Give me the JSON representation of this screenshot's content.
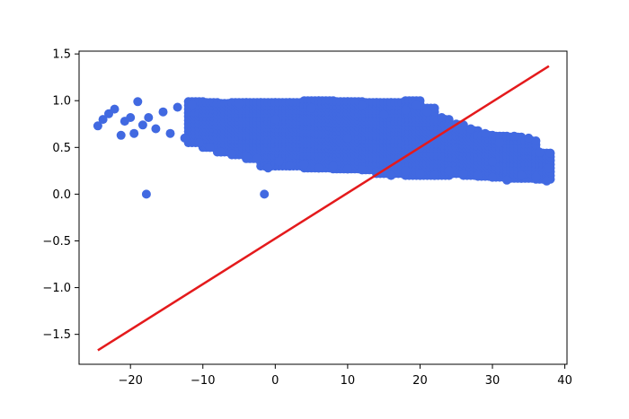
{
  "chart_data": {
    "type": "scatter",
    "title": "",
    "xlabel": "",
    "ylabel": "",
    "xlim": [
      -27.1,
      40.3
    ],
    "ylim": [
      -1.82,
      1.53
    ],
    "x_ticks": [
      -20,
      -10,
      0,
      10,
      20,
      30,
      40
    ],
    "y_ticks": [
      1.5,
      1.0,
      0.5,
      0.0,
      -0.5,
      -1.0,
      -1.5
    ],
    "x_tick_labels": [
      "−20",
      "−10",
      "0",
      "10",
      "20",
      "30",
      "40"
    ],
    "y_tick_labels": [
      "1.5",
      "1.0",
      "0.5",
      "0.0",
      "−0.5",
      "−1.0",
      "−1.5"
    ],
    "grid": false,
    "series": [
      {
        "kind": "scatter",
        "color": "#4169E1",
        "points": [
          [
            -24.5,
            0.73
          ],
          [
            -23.8,
            0.8
          ],
          [
            -23.0,
            0.86
          ],
          [
            -22.2,
            0.91
          ],
          [
            -21.3,
            0.63
          ],
          [
            -20.8,
            0.78
          ],
          [
            -20.0,
            0.82
          ],
          [
            -19.5,
            0.65
          ],
          [
            -19.0,
            0.99
          ],
          [
            -18.3,
            0.74
          ],
          [
            -17.8,
            0.0
          ],
          [
            -17.5,
            0.82
          ],
          [
            -16.5,
            0.7
          ],
          [
            -15.5,
            0.88
          ],
          [
            -14.5,
            0.65
          ],
          [
            -13.5,
            0.93
          ],
          [
            -12.5,
            0.6
          ],
          [
            -11.5,
            0.96
          ],
          [
            -10.5,
            0.55
          ],
          [
            -9.0,
            0.5
          ],
          [
            -7.5,
            0.45
          ],
          [
            -6.0,
            0.43
          ],
          [
            -4.0,
            0.41
          ],
          [
            -2.5,
            0.38
          ],
          [
            -1.5,
            0.0
          ],
          [
            -1.0,
            0.28
          ],
          [
            0.5,
            0.35
          ],
          [
            2.0,
            0.3
          ],
          [
            4.0,
            0.32
          ],
          [
            6.0,
            0.28
          ],
          [
            8.0,
            0.3
          ],
          [
            10.0,
            0.27
          ],
          [
            12.0,
            0.26
          ],
          [
            14.0,
            0.24
          ],
          [
            16.0,
            0.2
          ],
          [
            18.0,
            0.25
          ],
          [
            20.0,
            0.22
          ],
          [
            22.0,
            0.2
          ],
          [
            24.0,
            0.25
          ],
          [
            26.0,
            0.22
          ],
          [
            28.0,
            0.2
          ],
          [
            30.0,
            0.18
          ],
          [
            32.0,
            0.15
          ],
          [
            34.0,
            0.2
          ],
          [
            36.0,
            0.18
          ],
          [
            37.5,
            0.14
          ],
          [
            37.8,
            0.28
          ],
          [
            36.5,
            0.45
          ],
          [
            35.0,
            0.6
          ],
          [
            33.0,
            0.62
          ],
          [
            31.0,
            0.55
          ],
          [
            29.0,
            0.65
          ],
          [
            27.0,
            0.7
          ],
          [
            25.0,
            0.75
          ],
          [
            23.0,
            0.82
          ],
          [
            21.0,
            0.88
          ],
          [
            19.5,
            0.95
          ],
          [
            18.0,
            0.9
          ],
          [
            15.0,
            0.85
          ],
          [
            12.0,
            0.95
          ],
          [
            5.0,
            0.92
          ],
          [
            -5.0,
            0.97
          ],
          [
            0.0,
            0.8
          ],
          [
            10.0,
            0.6
          ],
          [
            20.0,
            0.5
          ],
          [
            30.0,
            0.35
          ]
        ],
        "bands": [
          [
            -11,
            0.55,
            1.0
          ],
          [
            -9,
            0.5,
            1.0
          ],
          [
            -7,
            0.45,
            1.0
          ],
          [
            -5,
            0.42,
            1.0
          ],
          [
            -3,
            0.38,
            1.0
          ],
          [
            -1,
            0.3,
            1.0
          ],
          [
            1,
            0.3,
            1.0
          ],
          [
            3,
            0.3,
            1.0
          ],
          [
            5,
            0.28,
            1.0
          ],
          [
            7,
            0.28,
            1.0
          ],
          [
            9,
            0.27,
            1.0
          ],
          [
            11,
            0.27,
            1.0
          ],
          [
            13,
            0.26,
            1.0
          ],
          [
            15,
            0.22,
            1.0
          ],
          [
            17,
            0.22,
            1.0
          ],
          [
            19,
            0.2,
            1.0
          ],
          [
            21,
            0.2,
            0.92
          ],
          [
            23,
            0.2,
            0.82
          ],
          [
            25,
            0.22,
            0.76
          ],
          [
            27,
            0.2,
            0.7
          ],
          [
            29,
            0.19,
            0.66
          ],
          [
            31,
            0.18,
            0.62
          ],
          [
            33,
            0.17,
            0.62
          ],
          [
            35,
            0.17,
            0.58
          ],
          [
            37,
            0.16,
            0.45
          ]
        ]
      },
      {
        "kind": "line",
        "color": "#E41A1C",
        "points": [
          [
            -24.5,
            -1.67
          ],
          [
            37.8,
            1.37
          ]
        ]
      }
    ]
  }
}
